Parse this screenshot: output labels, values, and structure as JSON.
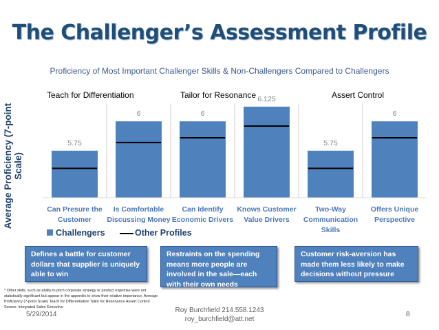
{
  "slide": {
    "title": "The Challenger’s Assessment Profile",
    "subtitle": "Proficiency of Most Important Challenger Skills & Non-Challengers Compared to Challengers",
    "ylabel": "Average Proficiency (7-point Scale)",
    "groups": [
      "Teach for Differentiation",
      "Tailor for Resonance",
      "Assert Control"
    ],
    "categories": [
      [
        "Can Presure the",
        "Customer"
      ],
      [
        "Is Comfortable",
        "Discussing Money"
      ],
      [
        "Can Identify",
        "Economic Drivers"
      ],
      [
        "Knows Customer",
        "Value Drivers"
      ],
      [
        "Two-Way",
        "Communication",
        "Skills"
      ],
      [
        "Offers Unique",
        "Perspective"
      ]
    ],
    "legend": {
      "challengers": "Challengers",
      "other": "Other Profiles"
    },
    "callouts": [
      "Defines a battle for customer dollars that supplier is uniquely able to win",
      "Restraints on the spending means more people are involved in the sale—each with their own needs",
      "Customer risk-aversion has made them less likely to make decisions without pressure"
    ],
    "footnote": "* Other skills, such as ability to pitch corporate strategy or product expertise were not statistically significant but appear in the appendix to show their relative importance. Average Proficiency (7-point Scale) Teach for Differentiation Tailor for Resonance Assert Control Source: Integrated Sales Executive",
    "footer": {
      "date": "5/29/2014",
      "name": "Roy Burchfield 214.558.1243",
      "email": "roy_burchfield@att.net",
      "page": "8"
    }
  },
  "chart_data": {
    "type": "bar",
    "categories": [
      "Can Presure the Customer",
      "Is Comfortable Discussing Money",
      "Can Identify Economic Drivers",
      "Knows Customer Value Drivers",
      "Two-Way Communication Skills",
      "Offers Unique Perspective"
    ],
    "series": [
      {
        "name": "Challengers",
        "values": [
          5.75,
          6,
          6,
          6.125,
          5.75,
          6
        ],
        "labels": [
          "5.75",
          "6",
          "6",
          "6.125",
          "5.75",
          "6"
        ]
      },
      {
        "name": "Other Profiles",
        "values": [
          5.6,
          5.82,
          5.86,
          5.96,
          5.6,
          5.86
        ]
      }
    ],
    "ylim": [
      5.35,
      6.2
    ],
    "colors": {
      "bar": "#4f81bd",
      "line": "#000000"
    }
  }
}
